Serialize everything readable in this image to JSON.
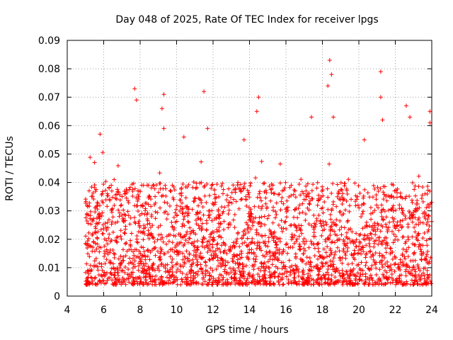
{
  "chart_data": {
    "type": "scatter",
    "title": "Day 048 of 2025, Rate Of TEC Index for receiver lpgs",
    "xlabel": "GPS time / hours",
    "ylabel": "ROTI / TECUs",
    "xlim": [
      4,
      24
    ],
    "ylim": [
      0,
      0.09
    ],
    "x_ticks": [
      4,
      6,
      8,
      10,
      12,
      14,
      16,
      18,
      20,
      22,
      24
    ],
    "x_tick_labels": [
      "4",
      "6",
      "8",
      "10",
      "12",
      "14",
      "16",
      "18",
      "20",
      "22",
      "24"
    ],
    "y_ticks": [
      0,
      0.01,
      0.02,
      0.03,
      0.04,
      0.05,
      0.06,
      0.07,
      0.08,
      0.09
    ],
    "y_tick_labels": [
      "0",
      "0.01",
      "0.02",
      "0.03",
      "0.04",
      "0.05",
      "0.06",
      "0.07",
      "0.08",
      "0.09"
    ],
    "grid": true,
    "marker": "+",
    "marker_color": "#ff0000",
    "series": [
      {
        "name": "ROTI",
        "x_range": [
          5.0,
          24.0
        ],
        "typical_range": [
          0.004,
          0.04
        ],
        "peaks": [
          {
            "x": 5.5,
            "y": 0.047
          },
          {
            "x": 5.8,
            "y": 0.057
          },
          {
            "x": 7.7,
            "y": 0.073
          },
          {
            "x": 7.8,
            "y": 0.069
          },
          {
            "x": 9.3,
            "y": 0.071
          },
          {
            "x": 9.2,
            "y": 0.066
          },
          {
            "x": 9.3,
            "y": 0.059
          },
          {
            "x": 10.4,
            "y": 0.056
          },
          {
            "x": 11.5,
            "y": 0.072
          },
          {
            "x": 11.7,
            "y": 0.059
          },
          {
            "x": 13.7,
            "y": 0.055
          },
          {
            "x": 14.5,
            "y": 0.07
          },
          {
            "x": 14.4,
            "y": 0.065
          },
          {
            "x": 17.4,
            "y": 0.063
          },
          {
            "x": 18.4,
            "y": 0.083
          },
          {
            "x": 18.5,
            "y": 0.078
          },
          {
            "x": 18.3,
            "y": 0.074
          },
          {
            "x": 18.6,
            "y": 0.063
          },
          {
            "x": 20.3,
            "y": 0.055
          },
          {
            "x": 21.2,
            "y": 0.079
          },
          {
            "x": 21.2,
            "y": 0.07
          },
          {
            "x": 21.3,
            "y": 0.062
          },
          {
            "x": 22.6,
            "y": 0.067
          },
          {
            "x": 22.8,
            "y": 0.063
          },
          {
            "x": 23.9,
            "y": 0.065
          },
          {
            "x": 23.9,
            "y": 0.061
          }
        ]
      }
    ]
  }
}
